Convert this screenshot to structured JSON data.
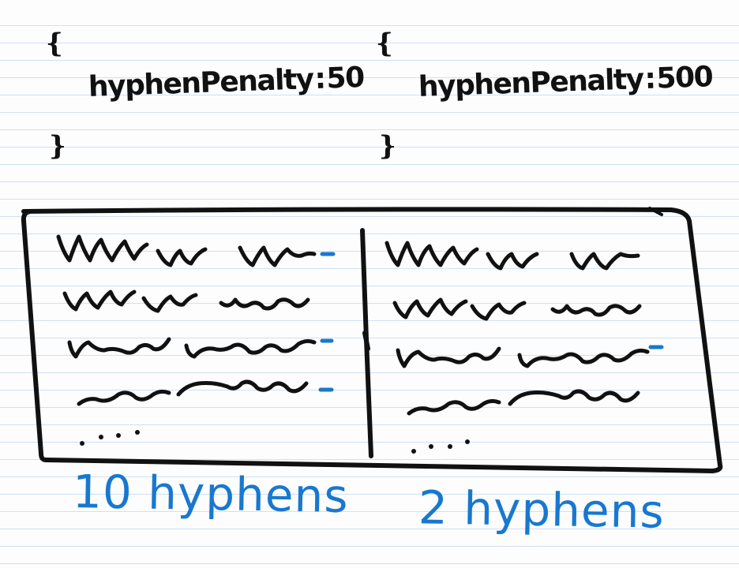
{
  "left_config": {
    "open_brace": "{",
    "property": "hyphenPenalty",
    "colon": ":",
    "value": "50",
    "close_brace": "}"
  },
  "right_config": {
    "open_brace": "{",
    "property": "hyphenPenalty",
    "colon": ":",
    "value": "500",
    "close_brace": "}"
  },
  "left_panel": {
    "caption": "10 hyphens",
    "hyphenated_lines": [
      true,
      false,
      true,
      true
    ]
  },
  "right_panel": {
    "caption": "2 hyphens",
    "hyphenated_lines": [
      false,
      false,
      true,
      false
    ]
  },
  "colors": {
    "ink": "#111111",
    "accent": "#1878d0",
    "paper_rule": "#cfe0f4"
  }
}
